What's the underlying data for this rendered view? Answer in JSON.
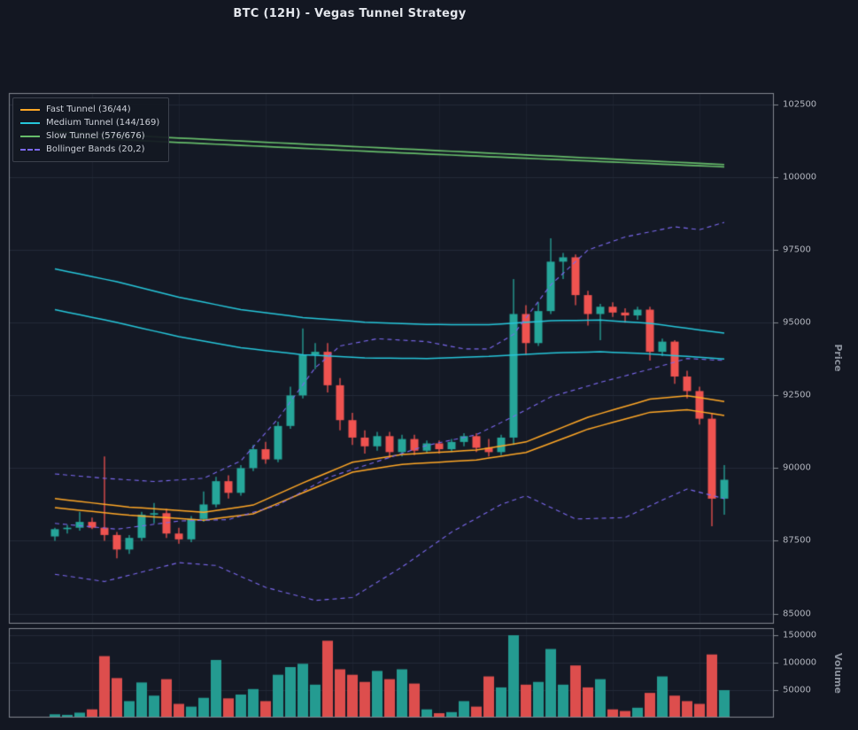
{
  "colors": {
    "background": "#131722",
    "axes_background": "#141925",
    "grid": "#232a38",
    "spine": "#82878f",
    "tick_text": "#b2b5be",
    "up": "#26a69a",
    "down": "#ef5350",
    "fast_tunnel": "#ffa726",
    "medium_tunnel": "#26c6da",
    "slow_tunnel": "#66bb6a",
    "bollinger": "#7b68ee"
  },
  "chart_data": {
    "type": "candlestick",
    "title": "BTC (12H) - Vegas Tunnel Strategy",
    "timeframe": "12H",
    "symbol": "BTC",
    "price_axis": {
      "label": "Price",
      "ticks": [
        85000,
        87500,
        90000,
        92500,
        95000,
        97500,
        100000,
        102500
      ],
      "range": [
        84650,
        102900
      ]
    },
    "volume_axis": {
      "label": "Volume",
      "ticks": [
        50000,
        100000,
        150000
      ],
      "range": [
        0,
        163000
      ]
    },
    "legend": {
      "items": [
        {
          "label": "Fast Tunnel (36/44)",
          "color": "#ffa726",
          "dash": false
        },
        {
          "label": "Medium Tunnel (144/169)",
          "color": "#26c6da",
          "dash": false
        },
        {
          "label": "Slow Tunnel (576/676)",
          "color": "#66bb6a",
          "dash": false
        },
        {
          "label": "Bollinger Bands (20,2)",
          "color": "#7b68ee",
          "dash": true
        }
      ]
    },
    "candles": [
      [
        87650,
        87950,
        87500,
        87900
      ],
      [
        87900,
        88050,
        87750,
        87950
      ],
      [
        87950,
        88500,
        87850,
        88150
      ],
      [
        88150,
        88300,
        87900,
        87950
      ],
      [
        87950,
        90400,
        87500,
        87700
      ],
      [
        87700,
        87800,
        86900,
        87200
      ],
      [
        87200,
        87700,
        87050,
        87600
      ],
      [
        87600,
        88500,
        87500,
        88400
      ],
      [
        88400,
        88800,
        88100,
        88450
      ],
      [
        88450,
        88600,
        87600,
        87750
      ],
      [
        87750,
        87950,
        87400,
        87550
      ],
      [
        87550,
        88350,
        87450,
        88250
      ],
      [
        88250,
        89200,
        88150,
        88750
      ],
      [
        88750,
        89700,
        88650,
        89550
      ],
      [
        89550,
        89750,
        88950,
        89150
      ],
      [
        89150,
        90100,
        89050,
        90000
      ],
      [
        90000,
        90800,
        89900,
        90650
      ],
      [
        90650,
        90900,
        90150,
        90300
      ],
      [
        90300,
        91600,
        90200,
        91450
      ],
      [
        91450,
        92800,
        91350,
        92500
      ],
      [
        92500,
        94800,
        92400,
        93900
      ],
      [
        93900,
        94300,
        93400,
        94000
      ],
      [
        94000,
        94300,
        92600,
        92850
      ],
      [
        92850,
        93100,
        91300,
        91650
      ],
      [
        91650,
        91900,
        90800,
        91050
      ],
      [
        91050,
        91300,
        90500,
        90750
      ],
      [
        90750,
        91250,
        90600,
        91100
      ],
      [
        91100,
        91250,
        90350,
        90550
      ],
      [
        90550,
        91150,
        90400,
        91000
      ],
      [
        91000,
        91150,
        90450,
        90600
      ],
      [
        90600,
        90950,
        90500,
        90850
      ],
      [
        90850,
        90950,
        90500,
        90650
      ],
      [
        90650,
        91000,
        90550,
        90900
      ],
      [
        90900,
        91200,
        90750,
        91100
      ],
      [
        91100,
        91200,
        90550,
        90700
      ],
      [
        90700,
        91000,
        90400,
        90550
      ],
      [
        90550,
        91150,
        90450,
        91050
      ],
      [
        91050,
        96500,
        90800,
        95300
      ],
      [
        95300,
        95600,
        93900,
        94300
      ],
      [
        94300,
        95700,
        94200,
        95400
      ],
      [
        95400,
        97900,
        95300,
        97100
      ],
      [
        97100,
        97400,
        96500,
        97250
      ],
      [
        97250,
        97350,
        95600,
        95950
      ],
      [
        95950,
        96100,
        94900,
        95300
      ],
      [
        95300,
        95650,
        94400,
        95550
      ],
      [
        95550,
        95700,
        95200,
        95350
      ],
      [
        95350,
        95500,
        95000,
        95250
      ],
      [
        95250,
        95550,
        95100,
        95450
      ],
      [
        95450,
        95550,
        93700,
        94000
      ],
      [
        94000,
        94450,
        93850,
        94350
      ],
      [
        94350,
        94400,
        92900,
        93150
      ],
      [
        93150,
        93350,
        92400,
        92650
      ],
      [
        92650,
        92800,
        91500,
        91700
      ],
      [
        91700,
        91900,
        88000,
        88950
      ],
      [
        88950,
        90100,
        88400,
        89600
      ]
    ],
    "volume": [
      6000,
      5000,
      9000,
      15000,
      112000,
      72000,
      30000,
      64000,
      40000,
      70000,
      25000,
      20000,
      36000,
      105000,
      35000,
      42000,
      52000,
      30000,
      78000,
      92000,
      98000,
      60000,
      140000,
      88000,
      78000,
      65000,
      85000,
      70000,
      88000,
      62000,
      15000,
      8000,
      10000,
      30000,
      20000,
      75000,
      55000,
      150000,
      60000,
      65000,
      125000,
      60000,
      95000,
      55000,
      70000,
      15000,
      12000,
      18000,
      45000,
      75000,
      40000,
      30000,
      25000,
      115000,
      50000
    ],
    "series": [
      {
        "name": "Slow Tunnel EMA576",
        "color": "#66bb6a",
        "dash": false,
        "width": 1.7,
        "points": [
          [
            0,
            101560
          ],
          [
            27,
            101000
          ],
          [
            54,
            100440
          ]
        ]
      },
      {
        "name": "Slow Tunnel EMA676",
        "color": "#66bb6a",
        "dash": false,
        "width": 1.7,
        "points": [
          [
            0,
            101400
          ],
          [
            27,
            100860
          ],
          [
            54,
            100360
          ]
        ]
      },
      {
        "name": "Medium Tunnel EMA144",
        "color": "#26c6da",
        "dash": false,
        "width": 1.5,
        "points": [
          [
            0,
            96850
          ],
          [
            5,
            96410
          ],
          [
            10,
            95880
          ],
          [
            15,
            95450
          ],
          [
            20,
            95180
          ],
          [
            25,
            95020
          ],
          [
            30,
            94940
          ],
          [
            35,
            94930
          ],
          [
            40,
            95070
          ],
          [
            44,
            95090
          ],
          [
            48,
            94980
          ],
          [
            54,
            94640
          ]
        ]
      },
      {
        "name": "Medium Tunnel EMA169",
        "color": "#26c6da",
        "dash": false,
        "width": 1.5,
        "points": [
          [
            0,
            95450
          ],
          [
            5,
            95010
          ],
          [
            10,
            94520
          ],
          [
            15,
            94140
          ],
          [
            20,
            93900
          ],
          [
            25,
            93790
          ],
          [
            30,
            93770
          ],
          [
            35,
            93840
          ],
          [
            40,
            93960
          ],
          [
            44,
            94000
          ],
          [
            48,
            93930
          ],
          [
            54,
            93750
          ]
        ]
      },
      {
        "name": "Fast Tunnel EMA36",
        "color": "#ffa726",
        "dash": false,
        "width": 1.5,
        "points": [
          [
            0,
            88950
          ],
          [
            6,
            88660
          ],
          [
            12,
            88480
          ],
          [
            16,
            88730
          ],
          [
            20,
            89490
          ],
          [
            24,
            90200
          ],
          [
            28,
            90470
          ],
          [
            34,
            90620
          ],
          [
            38,
            90900
          ],
          [
            43,
            91750
          ],
          [
            48,
            92370
          ],
          [
            51,
            92490
          ],
          [
            54,
            92290
          ]
        ]
      },
      {
        "name": "Fast Tunnel EMA44",
        "color": "#ffa726",
        "dash": false,
        "width": 1.5,
        "points": [
          [
            0,
            88640
          ],
          [
            6,
            88380
          ],
          [
            12,
            88210
          ],
          [
            16,
            88430
          ],
          [
            20,
            89150
          ],
          [
            24,
            89860
          ],
          [
            28,
            90130
          ],
          [
            34,
            90280
          ],
          [
            38,
            90540
          ],
          [
            43,
            91340
          ],
          [
            48,
            91920
          ],
          [
            51,
            92010
          ],
          [
            54,
            91810
          ]
        ]
      },
      {
        "name": "Bollinger Upper",
        "color": "#7b68ee",
        "dash": true,
        "width": 1.1,
        "points": [
          [
            0,
            89800
          ],
          [
            4,
            89650
          ],
          [
            8,
            89540
          ],
          [
            12,
            89650
          ],
          [
            15,
            90250
          ],
          [
            18,
            91700
          ],
          [
            21,
            93450
          ],
          [
            23,
            94200
          ],
          [
            26,
            94450
          ],
          [
            30,
            94350
          ],
          [
            33,
            94100
          ],
          [
            35,
            94100
          ],
          [
            37,
            94600
          ],
          [
            40,
            96300
          ],
          [
            43,
            97500
          ],
          [
            46,
            97950
          ],
          [
            50,
            98300
          ],
          [
            52,
            98200
          ],
          [
            54,
            98450
          ]
        ]
      },
      {
        "name": "Bollinger Middle",
        "color": "#7b68ee",
        "dash": true,
        "width": 1.1,
        "points": [
          [
            0,
            88100
          ],
          [
            5,
            87900
          ],
          [
            10,
            88180
          ],
          [
            14,
            88230
          ],
          [
            18,
            88730
          ],
          [
            22,
            89670
          ],
          [
            26,
            90230
          ],
          [
            30,
            90780
          ],
          [
            34,
            91150
          ],
          [
            37,
            91780
          ],
          [
            40,
            92450
          ],
          [
            44,
            92950
          ],
          [
            48,
            93400
          ],
          [
            51,
            93770
          ],
          [
            54,
            93700
          ]
        ]
      },
      {
        "name": "Bollinger Lower",
        "color": "#7b68ee",
        "dash": true,
        "width": 1.1,
        "points": [
          [
            0,
            86350
          ],
          [
            4,
            86100
          ],
          [
            10,
            86750
          ],
          [
            13,
            86650
          ],
          [
            17,
            85900
          ],
          [
            21,
            85450
          ],
          [
            24,
            85550
          ],
          [
            28,
            86600
          ],
          [
            32,
            87800
          ],
          [
            36,
            88750
          ],
          [
            38,
            89050
          ],
          [
            42,
            88250
          ],
          [
            46,
            88300
          ],
          [
            49,
            88900
          ],
          [
            51,
            89280
          ],
          [
            54,
            88950
          ]
        ]
      }
    ]
  }
}
